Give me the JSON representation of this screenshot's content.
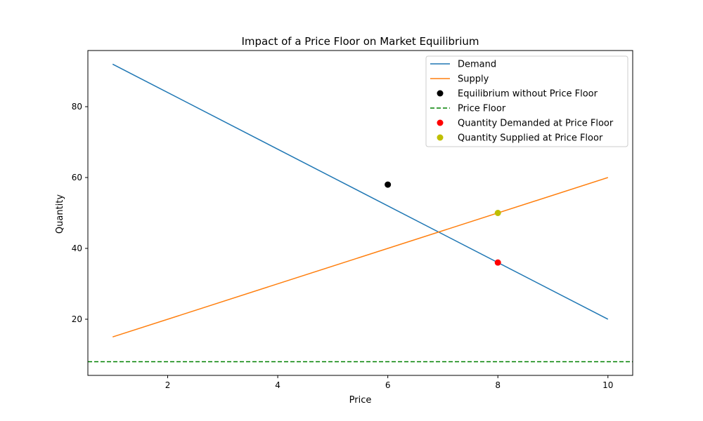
{
  "chart_data": {
    "type": "line",
    "title": "Impact of a Price Floor on Market Equilibrium",
    "xlabel": "Price",
    "ylabel": "Quantity",
    "xlim": [
      0.55,
      10.45
    ],
    "ylim": [
      4.15,
      95.85
    ],
    "xticks": [
      2,
      4,
      6,
      8,
      10
    ],
    "yticks": [
      20,
      40,
      60,
      80
    ],
    "grid": false,
    "legend_position": "upper-right",
    "series": [
      {
        "name": "Demand",
        "kind": "line",
        "style": "solid",
        "color": "#1f77b4",
        "x": [
          1,
          10
        ],
        "y": [
          92,
          20
        ]
      },
      {
        "name": "Supply",
        "kind": "line",
        "style": "solid",
        "color": "#ff7f0e",
        "x": [
          1,
          10
        ],
        "y": [
          15,
          60
        ]
      },
      {
        "name": "Equilibrium without Price Floor",
        "kind": "point",
        "color": "#000000",
        "x": [
          6
        ],
        "y": [
          58
        ]
      },
      {
        "name": "Price Floor",
        "kind": "hline",
        "style": "dashed",
        "color": "#008000",
        "y": 8
      },
      {
        "name": "Quantity Demanded at Price Floor",
        "kind": "point",
        "color": "#ff0000",
        "x": [
          8
        ],
        "y": [
          36
        ]
      },
      {
        "name": "Quantity Supplied at Price Floor",
        "kind": "point",
        "color": "#bfbf00",
        "x": [
          8
        ],
        "y": [
          50
        ]
      }
    ]
  }
}
